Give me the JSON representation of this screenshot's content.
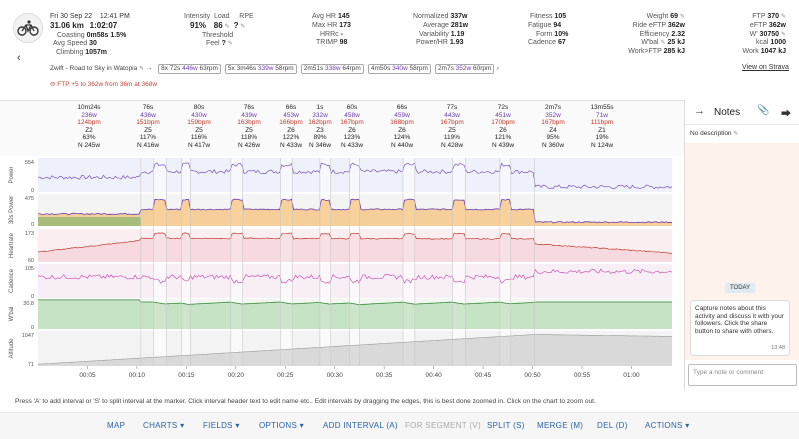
{
  "activity": {
    "date": "Fri 30 Sep 22",
    "time": "12:41 PM",
    "distance": "31.06 km",
    "duration": "1:02:07",
    "coasting_label": "Coasting",
    "coasting_time": "0m58s",
    "coasting_pct": "1.5%",
    "avg_speed_label": "Avg Speed",
    "avg_speed": "30",
    "climbing_label": "Climbing",
    "climbing": "1057m",
    "name": "Zwift - Road to Sky in Watopia",
    "strava_link": "View on Strava",
    "ftp_note": "FTP +5 to 362w from 36m at 368w"
  },
  "workout": {
    "sets": [
      {
        "count": "8x",
        "dur": "72s",
        "pw": "446w",
        "rpm": "63rpm"
      },
      {
        "count": "5x",
        "dur": "3m46s",
        "pw": "339w",
        "rpm": "58rpm"
      },
      {
        "count": "",
        "dur": "2m51s",
        "pw": "338w",
        "rpm": "64rpm"
      },
      {
        "count": "",
        "dur": "4m50s",
        "pw": "340w",
        "rpm": "58rpm"
      },
      {
        "count": "",
        "dur": "2m7s",
        "pw": "352w",
        "rpm": "60rpm"
      }
    ]
  },
  "effort": {
    "intensity_label": "Intensity",
    "intensity": "91%",
    "load_label": "Load",
    "load": "86",
    "rpe_label": "RPE",
    "rpe": "?",
    "threshold_label": "Threshold",
    "feel_label": "Feel",
    "feel": "?"
  },
  "hr": {
    "avg_hr_label": "Avg HR",
    "avg_hr": "145",
    "max_hr_label": "Max HR",
    "max_hr": "173",
    "hrrc_label": "HRRc",
    "hrrc": "-",
    "trimp_label": "TRIMP",
    "trimp": "98"
  },
  "power": {
    "normalized_label": "Normalized",
    "normalized": "337w",
    "average_label": "Average",
    "average": "281w",
    "variability_label": "Variability",
    "variability": "1.19",
    "power_hr_label": "Power/HR",
    "power_hr": "1.93"
  },
  "fitness": {
    "fitness_label": "Fitness",
    "fitness": "105",
    "fatigue_label": "Fatigue",
    "fatigue": "94",
    "form_label": "Form",
    "form": "10%",
    "cadence_label": "Cadence",
    "cadence": "67"
  },
  "athlete": {
    "weight_label": "Weight",
    "weight": "69",
    "ride_eftp_label": "Ride eFTP",
    "ride_eftp": "362w",
    "efficiency_label": "Efficiency",
    "efficiency": "2.32",
    "wbal_label": "W'bal",
    "wbal": "25 kJ",
    "work_ftp_label": "Work>FTP",
    "work_ftp": "285 kJ"
  },
  "thresholds": {
    "ftp_label": "FTP",
    "ftp": "370",
    "eftp_label": "eFTP",
    "eftp": "362w",
    "wprime_label": "W'",
    "wprime": "30750",
    "kcal_label": "kcal",
    "kcal": "1000",
    "work_label": "Work",
    "work": "1047 kJ"
  },
  "intervals": [
    {
      "dur": "10m24s",
      "pw": "236w",
      "hr": "124bpm",
      "zone": "Z2",
      "pct": "63%",
      "np": "N 245w"
    },
    {
      "dur": "76s",
      "pw": "436w",
      "hr": "151bpm",
      "zone": "Z5",
      "pct": "117%",
      "np": "N 416w"
    },
    {
      "dur": "80s",
      "pw": "430w",
      "hr": "159bpm",
      "zone": "Z5",
      "pct": "116%",
      "np": "N 417w"
    },
    {
      "dur": "76s",
      "pw": "439w",
      "hr": "163bpm",
      "zone": "Z5",
      "pct": "118%",
      "np": "N 426w"
    },
    {
      "dur": "66s",
      "pw": "453w",
      "hr": "166bpm",
      "zone": "Z6",
      "pct": "122%",
      "np": "N 433w"
    },
    {
      "dur": "1s",
      "pw": "332w",
      "hr": "162bpm",
      "zone": "Z3",
      "pct": "89%",
      "np": "N 346w"
    },
    {
      "dur": "60s",
      "pw": "458w",
      "hr": "167bpm",
      "zone": "Z6",
      "pct": "123%",
      "np": "N 433w"
    },
    {
      "dur": "66s",
      "pw": "459w",
      "hr": "168bpm",
      "zone": "Z6",
      "pct": "124%",
      "np": "N 440w"
    },
    {
      "dur": "77s",
      "pw": "443w",
      "hr": "167bpm",
      "zone": "Z5",
      "pct": "119%",
      "np": "N 428w"
    },
    {
      "dur": "72s",
      "pw": "451w",
      "hr": "170bpm",
      "zone": "Z6",
      "pct": "121%",
      "np": "N 439w"
    },
    {
      "dur": "2m7s",
      "pw": "352w",
      "hr": "167bpm",
      "zone": "Z4",
      "pct": "95%",
      "np": "N 360w"
    },
    {
      "dur": "13m55s",
      "pw": "71w",
      "hr": "111bpm",
      "zone": "Z1",
      "pct": "19%",
      "np": "N 124w"
    }
  ],
  "chart_data": {
    "type": "line",
    "x_ticks": [
      "00:05",
      "00:10",
      "00:15",
      "00:20",
      "00:25",
      "00:30",
      "00:35",
      "00:40",
      "00:45",
      "00:50",
      "00:55",
      "01:00"
    ],
    "panels": [
      {
        "name": "Power",
        "ticks": [
          "554",
          "0"
        ],
        "color": "#6a3cb0"
      },
      {
        "name": "30s Power",
        "ticks": [
          "475",
          "0"
        ],
        "color": "#6a3cb0"
      },
      {
        "name": "Heartrate",
        "ticks": [
          "173",
          "60"
        ],
        "color": "#c0392b"
      },
      {
        "name": "Cadence",
        "ticks": [
          "105",
          "0"
        ],
        "color": "#c43fa8"
      },
      {
        "name": "W'bal",
        "ticks": [
          "30.8",
          "0"
        ],
        "color": "#3a8a3a"
      },
      {
        "name": "Altitude",
        "ticks": [
          "1047",
          "71"
        ],
        "color": "#999999"
      }
    ]
  },
  "notes": {
    "title": "Notes",
    "no_description": "No description",
    "today": "TODAY",
    "bubble_text": "Capture notes about this activity and discuss it with your followers. Click the share button to share with others.",
    "bubble_time": "13:48",
    "input_placeholder": "Type a note or comment"
  },
  "hint": "Press 'A' to add interval or 'S' to split interval at the marker. Click interval header text to edit name etc.. Edit intervals by dragging the edges, this is best done zoomed in. Click on the chart to zoom out.",
  "toolbar": {
    "map": "MAP",
    "charts": "CHARTS",
    "fields": "FIELDS",
    "options": "OPTIONS",
    "add_interval": "ADD INTERVAL (A)",
    "for_segment": "FOR SEGMENT (V)",
    "split": "SPLIT (S)",
    "merge": "MERGE (M)",
    "del": "DEL (D)",
    "actions": "ACTIONS"
  }
}
